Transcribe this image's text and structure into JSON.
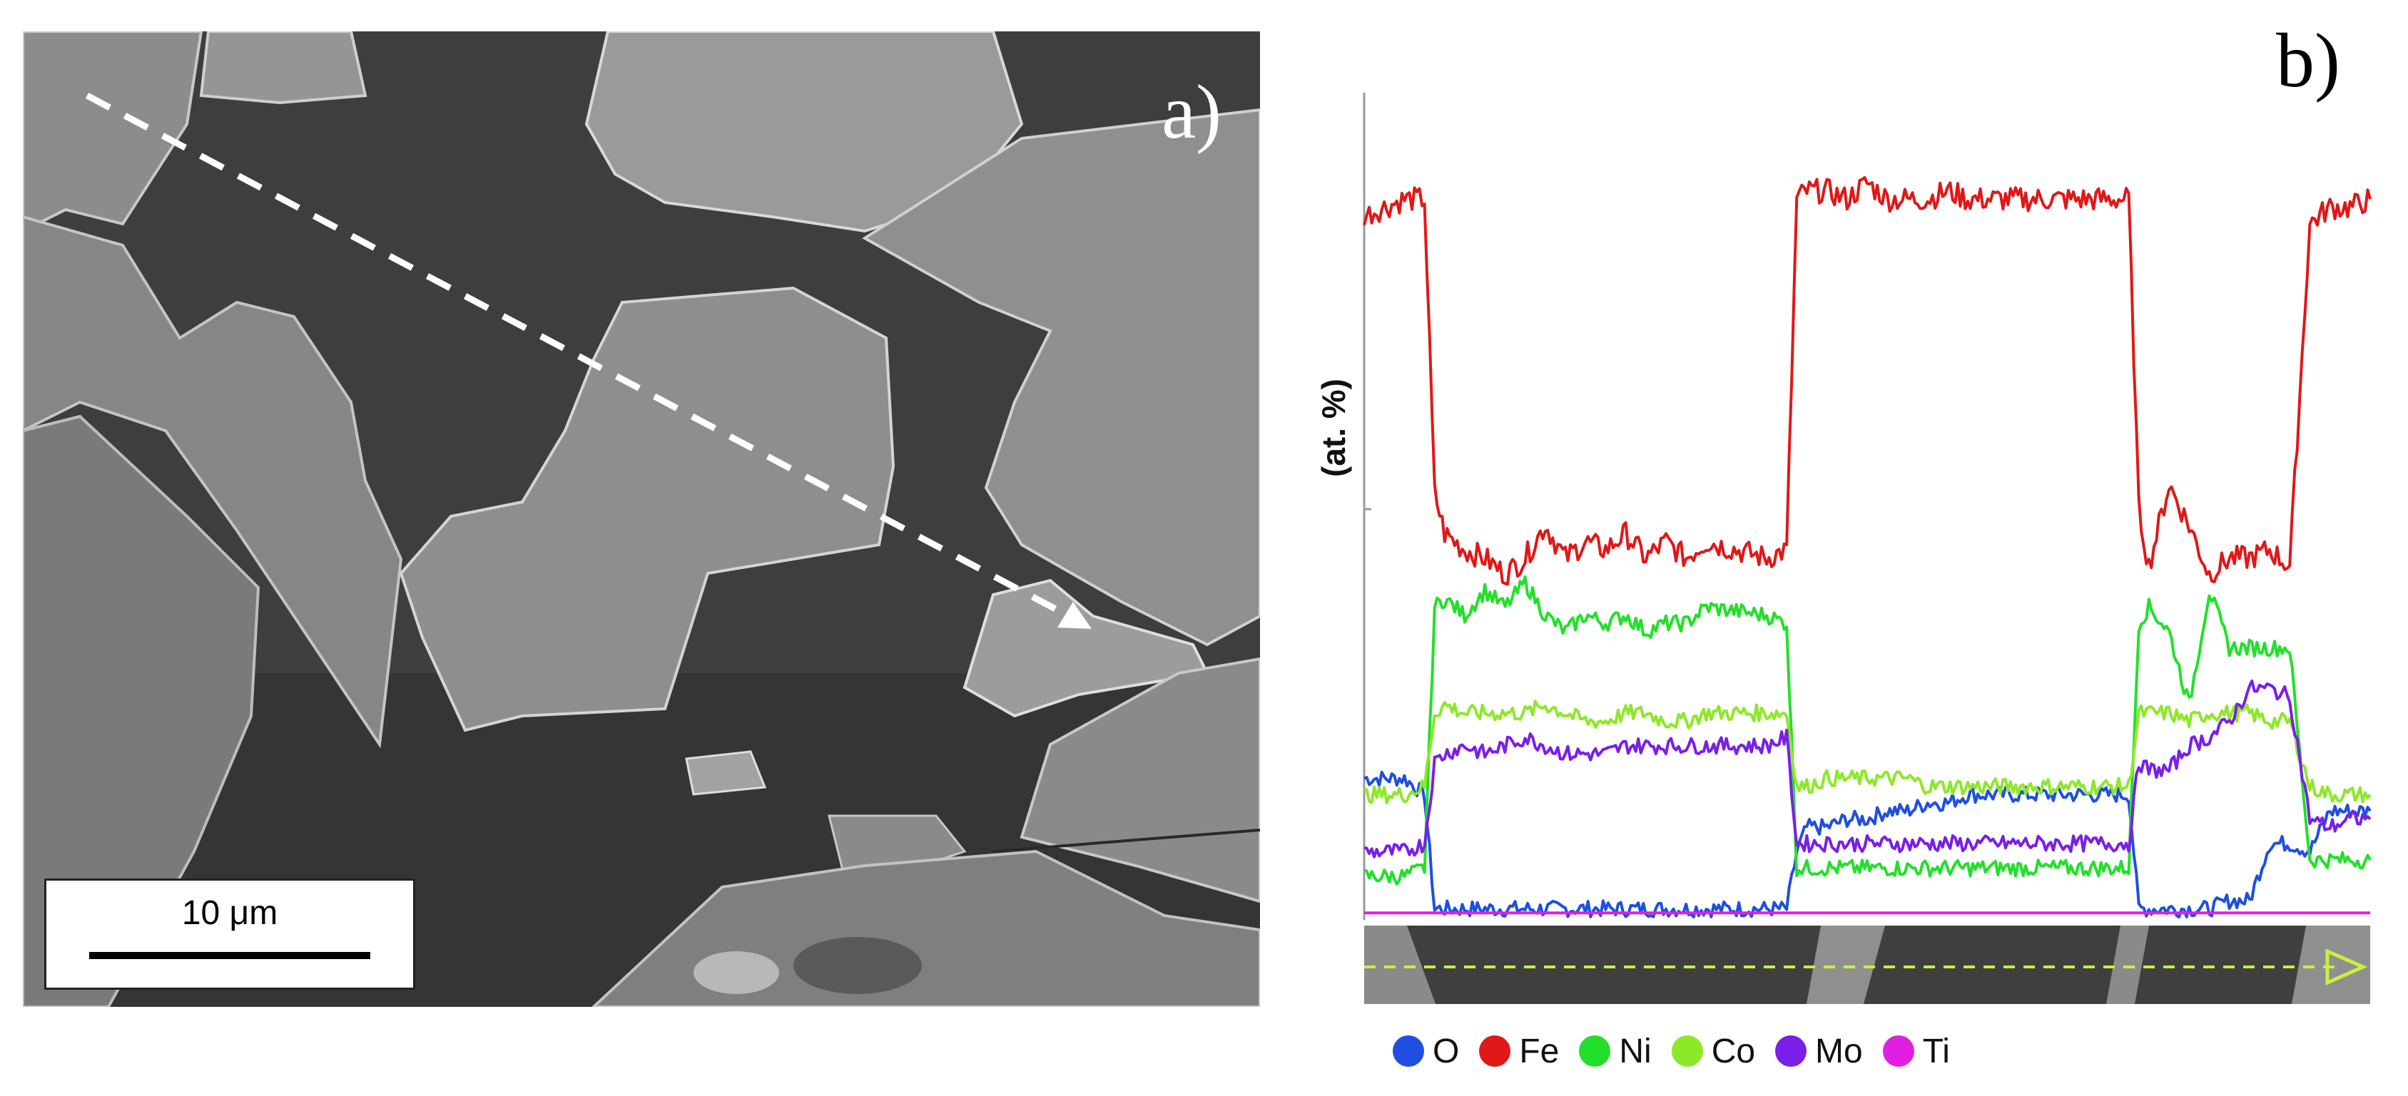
{
  "panel_a": {
    "label": "a)",
    "scale_bar_text": "10 μm"
  },
  "panel_b": {
    "label": "b)"
  },
  "chart_data": {
    "type": "line",
    "ylabel": "(at. %)",
    "xlabel": "",
    "grid": false,
    "legend_position": "bottom",
    "x": [
      0,
      2,
      4,
      6,
      7,
      8,
      10,
      12,
      14,
      16,
      18,
      20,
      22,
      24,
      26,
      28,
      30,
      32,
      34,
      40,
      42,
      43,
      44,
      46,
      48,
      50,
      52,
      54,
      56,
      58,
      60,
      62,
      76,
      77,
      78,
      80,
      82,
      84,
      86,
      88,
      90,
      92,
      94,
      96,
      98,
      100
    ],
    "series": [
      {
        "name": "O",
        "color": "#1f4fe0",
        "values": [
          17,
          17,
          17,
          15,
          1,
          1,
          1,
          1,
          1,
          1,
          1,
          1,
          1,
          1,
          1,
          1,
          1,
          1,
          1,
          1,
          1,
          8,
          11,
          11,
          12,
          12,
          13,
          13,
          14,
          14,
          15,
          15,
          15,
          1,
          1,
          1,
          1,
          1,
          2,
          2,
          9,
          9,
          8,
          13,
          13,
          13
        ]
      },
      {
        "name": "Fe",
        "color": "#e01818",
        "values": [
          86,
          87,
          88,
          88,
          52,
          47,
          45,
          44,
          42,
          44,
          48,
          44,
          46,
          45,
          47,
          44,
          46,
          44,
          46,
          44,
          45,
          88,
          89,
          89,
          88,
          90,
          88,
          88,
          88,
          89,
          88,
          88,
          88,
          50,
          43,
          53,
          48,
          42,
          44,
          44,
          45,
          43,
          85,
          87,
          87,
          88
        ]
      },
      {
        "name": "Ni",
        "color": "#22e02a",
        "values": [
          5,
          5,
          5,
          6,
          38,
          39,
          37,
          40,
          38,
          41,
          37,
          35,
          37,
          36,
          37,
          35,
          36,
          36,
          38,
          37,
          36,
          6,
          6,
          6,
          6,
          6,
          6,
          6,
          6,
          6,
          6,
          6,
          6,
          36,
          38,
          35,
          26,
          40,
          33,
          33,
          33,
          33,
          7,
          7,
          7,
          7
        ]
      },
      {
        "name": "Co",
        "color": "#8ee82a",
        "values": [
          15,
          15,
          15,
          16,
          25,
          26,
          25,
          25,
          25,
          25,
          26,
          25,
          24,
          24,
          25,
          25,
          24,
          24,
          25,
          25,
          25,
          16,
          16,
          17,
          17,
          17,
          17,
          17,
          16,
          16,
          16,
          16,
          16,
          25,
          25,
          25,
          24,
          25,
          25,
          25,
          24,
          24,
          16,
          15,
          15,
          15
        ]
      },
      {
        "name": "Mo",
        "color": "#7a1fe8",
        "values": [
          8,
          8,
          8,
          9,
          19,
          20,
          21,
          20,
          21,
          22,
          21,
          20,
          20,
          20,
          21,
          21,
          21,
          21,
          21,
          21,
          22,
          9,
          9,
          9,
          9,
          9,
          9,
          9,
          9,
          9,
          9,
          9,
          9,
          19,
          18,
          18,
          21,
          22,
          24,
          28,
          28,
          27,
          12,
          11,
          12,
          12
        ]
      },
      {
        "name": "Ti",
        "color": "#e01fe0",
        "values": [
          0.5,
          0.5,
          0.5,
          0.5,
          0.5,
          0.5,
          0.5,
          0.5,
          0.5,
          0.5,
          0.5,
          0.5,
          0.5,
          0.5,
          0.5,
          0.5,
          0.5,
          0.5,
          0.5,
          0.5,
          0.5,
          0.5,
          0.5,
          0.5,
          0.5,
          0.5,
          0.5,
          0.5,
          0.5,
          0.5,
          0.5,
          0.5,
          0.5,
          0.5,
          0.5,
          0.5,
          0.5,
          0.5,
          0.5,
          0.5,
          0.5,
          0.5,
          0.5,
          0.5,
          0.5,
          0.5
        ]
      }
    ],
    "xlim": [
      0,
      100
    ],
    "ylim": [
      0,
      100
    ]
  }
}
